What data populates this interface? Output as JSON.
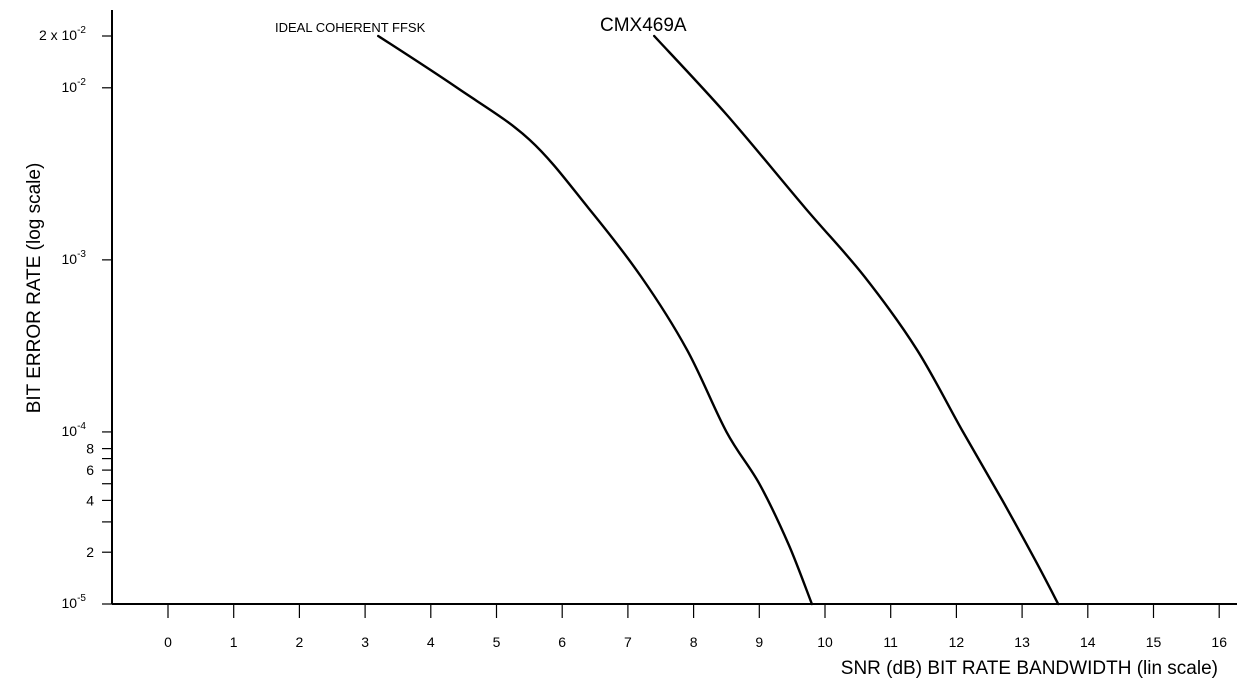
{
  "chart_data": {
    "type": "line",
    "title": "",
    "xlabel": "SNR (dB) BIT RATE BANDWIDTH  (lin scale)",
    "ylabel": "BIT ERROR RATE (log scale)",
    "x_scale": "linear",
    "y_scale": "log",
    "xlim": [
      -1.7,
      16.7
    ],
    "ylim": [
      1e-05,
      0.02
    ],
    "x_ticks": [
      "0",
      "1",
      "2",
      "3",
      "4",
      "5",
      "6",
      "7",
      "8",
      "9",
      "10",
      "11",
      "12",
      "13",
      "14",
      "15",
      "16"
    ],
    "y_decade_ticks": [
      {
        "value": 0.01,
        "base": "10",
        "exp": "-2"
      },
      {
        "value": 0.001,
        "base": "10",
        "exp": "-3"
      },
      {
        "value": 0.0001,
        "base": "10",
        "exp": "-4"
      },
      {
        "value": 1e-05,
        "base": "10",
        "exp": "-5"
      }
    ],
    "y_top_label": {
      "value": 0.02,
      "prefix": "2  x  10",
      "exp": "-2"
    },
    "y_minor_ticks": [
      {
        "value": 8e-05,
        "label": "8"
      },
      {
        "value": 7e-05,
        "label": ""
      },
      {
        "value": 6e-05,
        "label": "6"
      },
      {
        "value": 5e-05,
        "label": ""
      },
      {
        "value": 4e-05,
        "label": "4"
      },
      {
        "value": 3e-05,
        "label": ""
      },
      {
        "value": 2e-05,
        "label": "2"
      }
    ],
    "series": [
      {
        "name": "IDEAL COHERENT FFSK",
        "x": [
          3.2,
          4.4,
          5.5,
          6.4,
          7.2,
          7.9,
          8.5,
          9.0,
          9.45,
          9.8
        ],
        "y": [
          0.02,
          0.01,
          0.005,
          0.002,
          0.0008,
          0.0003,
          0.0001,
          5e-05,
          2.2e-05,
          1e-05
        ]
      },
      {
        "name": "CMX469A",
        "x": [
          7.4,
          8.5,
          9.7,
          10.6,
          11.4,
          12.1,
          12.7,
          13.2,
          13.55
        ],
        "y": [
          0.02,
          0.007,
          0.002,
          0.0008,
          0.0003,
          0.0001,
          4e-05,
          1.8e-05,
          1e-05
        ]
      }
    ]
  }
}
